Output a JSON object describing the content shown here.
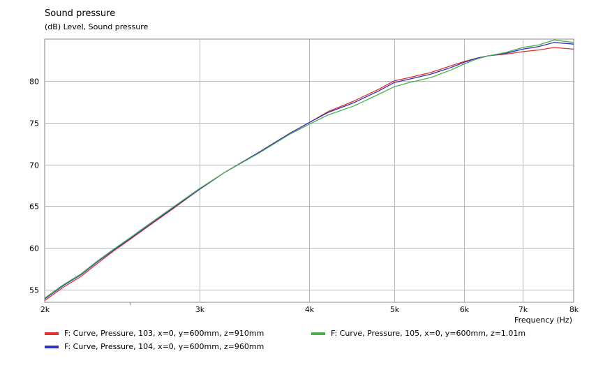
{
  "header": {
    "title": "Sound pressure",
    "subtitle": "(dB)  Level, Sound pressure"
  },
  "chart_data": {
    "type": "line",
    "xscale": "log",
    "xlim": [
      2000,
      8000
    ],
    "ylim": [
      53.5,
      85
    ],
    "grid": true,
    "xlabel": "Frequency  (Hz)",
    "ylabel": "",
    "x_ticks": [
      {
        "value": 2000,
        "label": "2k"
      },
      {
        "value": 3000,
        "label": "3k"
      },
      {
        "value": 4000,
        "label": "4k"
      },
      {
        "value": 5000,
        "label": "5k"
      },
      {
        "value": 6000,
        "label": "6k"
      },
      {
        "value": 7000,
        "label": "7k"
      },
      {
        "value": 8000,
        "label": "8k"
      }
    ],
    "x_minor_ticks": [
      2500
    ],
    "y_ticks": [
      {
        "value": 55,
        "label": "55"
      },
      {
        "value": 60,
        "label": "60"
      },
      {
        "value": 65,
        "label": "65"
      },
      {
        "value": 70,
        "label": "70"
      },
      {
        "value": 75,
        "label": "75"
      },
      {
        "value": 80,
        "label": "80"
      }
    ],
    "series": [
      {
        "name": "F: Curve, Pressure, 103, x=0, y=600mm, z=910mm",
        "color": "#e03030",
        "points": [
          [
            2000,
            53.7
          ],
          [
            2100,
            55.3
          ],
          [
            2200,
            56.6
          ],
          [
            2300,
            58.2
          ],
          [
            2400,
            59.7
          ],
          [
            2500,
            61.0
          ],
          [
            2600,
            62.3
          ],
          [
            2800,
            64.7
          ],
          [
            3000,
            67.0
          ],
          [
            3200,
            69.0
          ],
          [
            3500,
            71.4
          ],
          [
            3800,
            73.7
          ],
          [
            4000,
            75.0
          ],
          [
            4200,
            76.3
          ],
          [
            4500,
            77.6
          ],
          [
            4800,
            79.0
          ],
          [
            5000,
            80.0
          ],
          [
            5200,
            80.4
          ],
          [
            5500,
            81.0
          ],
          [
            5800,
            81.8
          ],
          [
            6000,
            82.3
          ],
          [
            6200,
            82.7
          ],
          [
            6400,
            83.0
          ],
          [
            6700,
            83.2
          ],
          [
            7000,
            83.5
          ],
          [
            7300,
            83.7
          ],
          [
            7600,
            84.0
          ],
          [
            8000,
            83.8
          ]
        ]
      },
      {
        "name": "F: Curve, Pressure, 104, x=0, y=600mm, z=960mm",
        "color": "#3030c0",
        "points": [
          [
            2000,
            53.9
          ],
          [
            2100,
            55.5
          ],
          [
            2200,
            56.8
          ],
          [
            2300,
            58.4
          ],
          [
            2400,
            59.8
          ],
          [
            2500,
            61.1
          ],
          [
            2600,
            62.4
          ],
          [
            2800,
            64.8
          ],
          [
            3000,
            67.0
          ],
          [
            3200,
            69.0
          ],
          [
            3500,
            71.4
          ],
          [
            3800,
            73.7
          ],
          [
            4000,
            75.0
          ],
          [
            4200,
            76.2
          ],
          [
            4500,
            77.4
          ],
          [
            4800,
            78.8
          ],
          [
            5000,
            79.8
          ],
          [
            5200,
            80.2
          ],
          [
            5500,
            80.8
          ],
          [
            5800,
            81.6
          ],
          [
            6000,
            82.2
          ],
          [
            6200,
            82.7
          ],
          [
            6400,
            83.0
          ],
          [
            6700,
            83.3
          ],
          [
            7000,
            83.8
          ],
          [
            7300,
            84.1
          ],
          [
            7600,
            84.6
          ],
          [
            8000,
            84.4
          ]
        ]
      },
      {
        "name": "F: Curve, Pressure, 105, x=0, y=600mm, z=1.01m",
        "color": "#4caf50",
        "points": [
          [
            2000,
            54.0
          ],
          [
            2100,
            55.6
          ],
          [
            2200,
            56.9
          ],
          [
            2300,
            58.5
          ],
          [
            2400,
            59.9
          ],
          [
            2500,
            61.2
          ],
          [
            2600,
            62.5
          ],
          [
            2800,
            64.9
          ],
          [
            3000,
            67.1
          ],
          [
            3200,
            69.0
          ],
          [
            3500,
            71.3
          ],
          [
            3800,
            73.6
          ],
          [
            4000,
            74.8
          ],
          [
            4200,
            75.9
          ],
          [
            4500,
            77.0
          ],
          [
            4800,
            78.4
          ],
          [
            5000,
            79.3
          ],
          [
            5200,
            79.8
          ],
          [
            5500,
            80.4
          ],
          [
            5800,
            81.3
          ],
          [
            6000,
            82.0
          ],
          [
            6200,
            82.6
          ],
          [
            6400,
            83.0
          ],
          [
            6700,
            83.4
          ],
          [
            7000,
            84.0
          ],
          [
            7300,
            84.3
          ],
          [
            7600,
            84.9
          ],
          [
            8000,
            84.6
          ]
        ]
      }
    ]
  }
}
